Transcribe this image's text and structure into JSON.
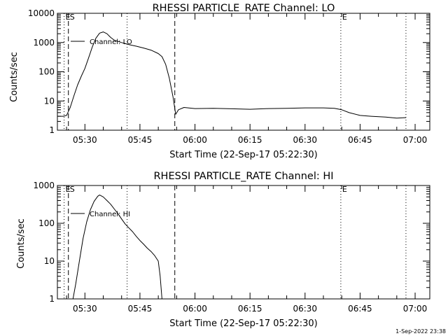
{
  "chart_data": [
    {
      "type": "line",
      "title": "RHESSI PARTICLE_RATE Channel: LO",
      "xlabel": "Start Time (22-Sep-17 05:22:30)",
      "ylabel": "Counts/sec",
      "y_scale": "log",
      "xlim": [
        "05:22:30",
        "07:04:00"
      ],
      "ylim": [
        1,
        10000
      ],
      "x_tick_labels": [
        "05:30",
        "05:45",
        "06:00",
        "06:15",
        "06:30",
        "06:45",
        "07:00"
      ],
      "y_tick_labels": [
        "1",
        "10",
        "100",
        "1000",
        "10000"
      ],
      "legend_position": "top-left",
      "markers": [
        {
          "label": "E",
          "x": "05:24:20",
          "style": "dotted"
        },
        {
          "label": "S",
          "x": "05:25:30",
          "style": "dashed"
        },
        {
          "label": "",
          "x": "05:41:30",
          "style": "dotted"
        },
        {
          "label": "",
          "x": "05:54:30",
          "style": "dashed"
        },
        {
          "label": "E",
          "x": "06:39:45",
          "style": "dotted"
        },
        {
          "label": "",
          "x": "06:57:30",
          "style": "dotted"
        }
      ],
      "series": [
        {
          "name": "Channel: LO",
          "points": [
            [
              "05:22:30",
              3
            ],
            [
              "05:24:00",
              3
            ],
            [
              "05:25:00",
              3.2
            ],
            [
              "05:26:00",
              6
            ],
            [
              "05:27:00",
              15
            ],
            [
              "05:28:00",
              35
            ],
            [
              "05:29:00",
              70
            ],
            [
              "05:30:00",
              130
            ],
            [
              "05:31:00",
              300
            ],
            [
              "05:32:00",
              700
            ],
            [
              "05:33:00",
              1400
            ],
            [
              "05:34:00",
              2100
            ],
            [
              "05:35:00",
              2300
            ],
            [
              "05:36:00",
              2000
            ],
            [
              "05:37:00",
              1500
            ],
            [
              "05:38:00",
              1200
            ],
            [
              "05:40:00",
              1000
            ],
            [
              "05:42:00",
              850
            ],
            [
              "05:44:00",
              750
            ],
            [
              "05:46:00",
              650
            ],
            [
              "05:48:00",
              550
            ],
            [
              "05:50:00",
              420
            ],
            [
              "05:51:00",
              330
            ],
            [
              "05:52:00",
              180
            ],
            [
              "05:53:00",
              60
            ],
            [
              "05:54:00",
              14
            ],
            [
              "05:54:45",
              3.5
            ],
            [
              "05:55:30",
              5
            ],
            [
              "05:57:00",
              6
            ],
            [
              "06:00:00",
              5.5
            ],
            [
              "06:05:00",
              5.6
            ],
            [
              "06:10:00",
              5.4
            ],
            [
              "06:15:00",
              5.2
            ],
            [
              "06:20:00",
              5.5
            ],
            [
              "06:25:00",
              5.6
            ],
            [
              "06:30:00",
              5.8
            ],
            [
              "06:35:00",
              5.8
            ],
            [
              "06:38:00",
              5.6
            ],
            [
              "06:40:00",
              5.0
            ],
            [
              "06:42:00",
              4.0
            ],
            [
              "06:45:00",
              3.2
            ],
            [
              "06:48:00",
              3.0
            ],
            [
              "06:52:00",
              2.8
            ],
            [
              "06:55:00",
              2.6
            ],
            [
              "06:57:30",
              2.7
            ]
          ]
        }
      ]
    },
    {
      "type": "line",
      "title": "RHESSI PARTICLE_RATE Channel: HI",
      "xlabel": "Start Time (22-Sep-17 05:22:30)",
      "ylabel": "Counts/sec",
      "y_scale": "log",
      "xlim": [
        "05:22:30",
        "07:04:00"
      ],
      "ylim": [
        1,
        1000
      ],
      "x_tick_labels": [
        "05:30",
        "05:45",
        "06:00",
        "06:15",
        "06:30",
        "06:45",
        "07:00"
      ],
      "y_tick_labels": [
        "1",
        "10",
        "100",
        "1000"
      ],
      "legend_position": "top-left",
      "markers": [
        {
          "label": "E",
          "x": "05:24:20",
          "style": "dotted"
        },
        {
          "label": "S",
          "x": "05:25:30",
          "style": "dashed"
        },
        {
          "label": "",
          "x": "05:41:30",
          "style": "dotted"
        },
        {
          "label": "",
          "x": "05:54:30",
          "style": "dashed"
        },
        {
          "label": "E",
          "x": "06:39:45",
          "style": "dotted"
        },
        {
          "label": "",
          "x": "06:57:30",
          "style": "dotted"
        }
      ],
      "series": [
        {
          "name": "Channel: HI",
          "points": [
            [
              "05:26:45",
              1
            ],
            [
              "05:27:30",
              2.5
            ],
            [
              "05:28:30",
              10
            ],
            [
              "05:29:30",
              40
            ],
            [
              "05:30:30",
              110
            ],
            [
              "05:31:30",
              230
            ],
            [
              "05:32:30",
              380
            ],
            [
              "05:33:30",
              520
            ],
            [
              "05:34:00",
              560
            ],
            [
              "05:35:00",
              500
            ],
            [
              "05:36:00",
              400
            ],
            [
              "05:37:00",
              320
            ],
            [
              "05:38:00",
              240
            ],
            [
              "05:39:00",
              180
            ],
            [
              "05:40:00",
              130
            ],
            [
              "05:41:00",
              95
            ],
            [
              "05:42:00",
              75
            ],
            [
              "05:43:00",
              60
            ],
            [
              "05:44:00",
              45
            ],
            [
              "05:45:00",
              35
            ],
            [
              "05:46:00",
              28
            ],
            [
              "05:47:00",
              22
            ],
            [
              "05:48:00",
              18
            ],
            [
              "05:49:00",
              14
            ],
            [
              "05:50:00",
              10
            ],
            [
              "05:50:30",
              4
            ],
            [
              "05:51:00",
              1
            ]
          ]
        }
      ]
    }
  ],
  "footer": {
    "timestamp": "1-Sep-2022 23:38"
  }
}
